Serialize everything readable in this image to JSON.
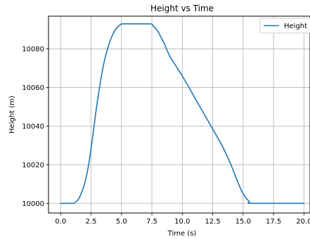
{
  "chart_data": {
    "type": "line",
    "title": "Height vs Time",
    "xlabel": "Time (s)",
    "ylabel": "Height (m)",
    "xlim": [
      -1.0,
      20.5
    ],
    "ylim": [
      9995,
      10097
    ],
    "xticks": [
      0.0,
      2.5,
      5.0,
      7.5,
      10.0,
      12.5,
      15.0,
      17.5,
      20.0
    ],
    "xtick_labels": [
      "0.0",
      "2.5",
      "5.0",
      "7.5",
      "10.0",
      "12.5",
      "15.0",
      "17.5",
      "20.0"
    ],
    "yticks": [
      10000,
      10020,
      10040,
      10060,
      10080
    ],
    "ytick_labels": [
      "10000",
      "10020",
      "10040",
      "10060",
      "10080"
    ],
    "grid": true,
    "legend_position": "top-right",
    "series": [
      {
        "name": "Height",
        "color": "#1f77b4",
        "x": [
          0.0,
          1.0,
          1.2,
          1.5,
          1.8,
          2.0,
          2.3,
          2.6,
          3.0,
          3.5,
          4.0,
          4.5,
          5.0,
          5.2,
          7.3,
          7.6,
          8.0,
          8.5,
          9.0,
          10.0,
          11.0,
          12.0,
          13.0,
          13.5,
          14.0,
          14.5,
          15.0,
          15.5,
          15.8,
          20.0
        ],
        "y": [
          10000,
          10000,
          10000.5,
          10002.5,
          10007,
          10011,
          10020,
          10033,
          10052,
          10071,
          10083,
          10090,
          10093,
          10093,
          10093,
          10092,
          10089,
          10083,
          10076,
          10066,
          10055,
          10044,
          10033,
          10027,
          10020,
          10012,
          10005,
          10001,
          10000,
          10000
        ]
      }
    ]
  }
}
